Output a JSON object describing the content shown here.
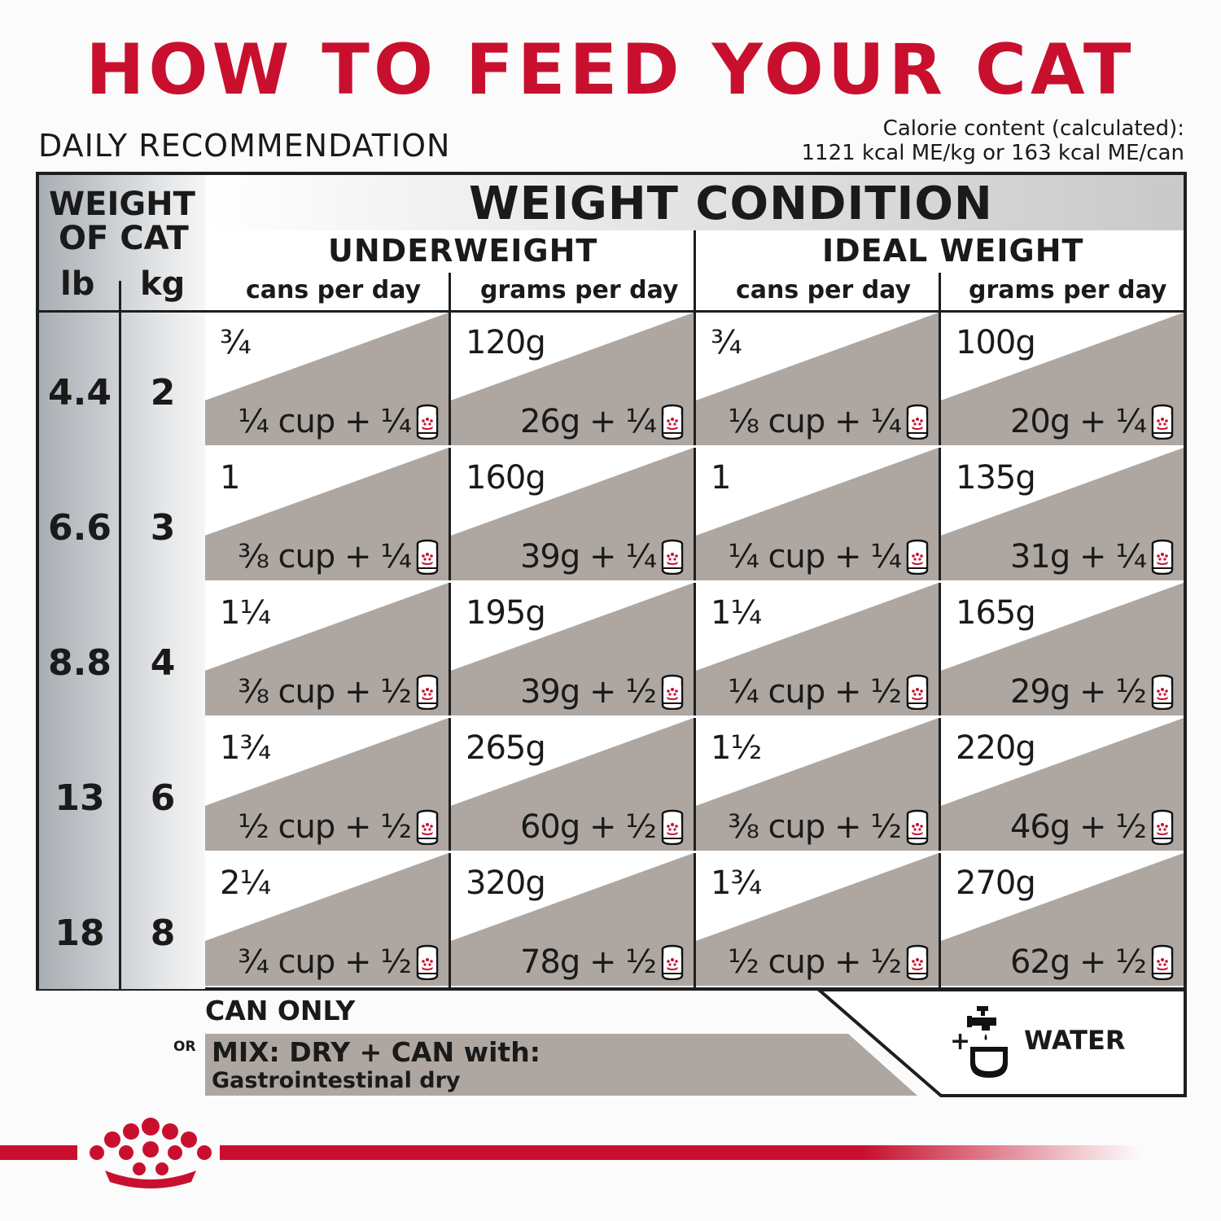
{
  "title": "HOW TO FEED YOUR CAT",
  "daily_label": "DAILY RECOMMENDATION",
  "calorie": {
    "line1": "Calorie content (calculated):",
    "line2": "1121 kcal ME/kg or 163 kcal ME/can"
  },
  "headers": {
    "weight_of_cat_1": "WEIGHT",
    "weight_of_cat_2": "OF CAT",
    "lb": "lb",
    "kg": "kg",
    "weight_condition": "WEIGHT CONDITION",
    "underweight": "UNDERWEIGHT",
    "ideal_weight": "IDEAL WEIGHT",
    "cans_per_day": "cans per day",
    "grams_per_day": "grams per day"
  },
  "rows": [
    {
      "lb": "4.4",
      "kg": "2",
      "uw_cans": "¾",
      "uw_cans_mix": "¼ cup + ¼",
      "uw_grams": "120g",
      "uw_grams_mix": "26g + ¼",
      "iw_cans": "¾",
      "iw_cans_mix": "⅛ cup + ¼",
      "iw_grams": "100g",
      "iw_grams_mix": "20g + ¼"
    },
    {
      "lb": "6.6",
      "kg": "3",
      "uw_cans": "1",
      "uw_cans_mix": "⅜ cup + ¼",
      "uw_grams": "160g",
      "uw_grams_mix": "39g + ¼",
      "iw_cans": "1",
      "iw_cans_mix": "¼ cup + ¼",
      "iw_grams": "135g",
      "iw_grams_mix": "31g + ¼"
    },
    {
      "lb": "8.8",
      "kg": "4",
      "uw_cans": "1¼",
      "uw_cans_mix": "⅜ cup + ½",
      "uw_grams": "195g",
      "uw_grams_mix": "39g + ½",
      "iw_cans": "1¼",
      "iw_cans_mix": "¼ cup + ½",
      "iw_grams": "165g",
      "iw_grams_mix": "29g + ½"
    },
    {
      "lb": "13",
      "kg": "6",
      "uw_cans": "1¾",
      "uw_cans_mix": "½ cup + ½",
      "uw_grams": "265g",
      "uw_grams_mix": "60g + ½",
      "iw_cans": "1½",
      "iw_cans_mix": "⅜ cup + ½",
      "iw_grams": "220g",
      "iw_grams_mix": "46g + ½"
    },
    {
      "lb": "18",
      "kg": "8",
      "uw_cans": "2¼",
      "uw_cans_mix": "¾ cup + ½",
      "uw_grams": "320g",
      "uw_grams_mix": "78g + ½",
      "iw_cans": "1¾",
      "iw_cans_mix": "½ cup + ½",
      "iw_grams": "270g",
      "iw_grams_mix": "62g + ½"
    }
  ],
  "legend": {
    "can_only": "CAN ONLY",
    "or": "OR",
    "mix_title": "MIX: DRY + CAN with:",
    "mix_sub": "Gastrointestinal dry",
    "water": "WATER",
    "plus": "+"
  },
  "colors": {
    "brand_red": "#c8102e",
    "mix_gray": "#aea7a1",
    "frame": "#1e1e1e"
  },
  "icons": [
    "can-icon",
    "faucet-bowl-icon",
    "royal-canin-crown-logo"
  ]
}
